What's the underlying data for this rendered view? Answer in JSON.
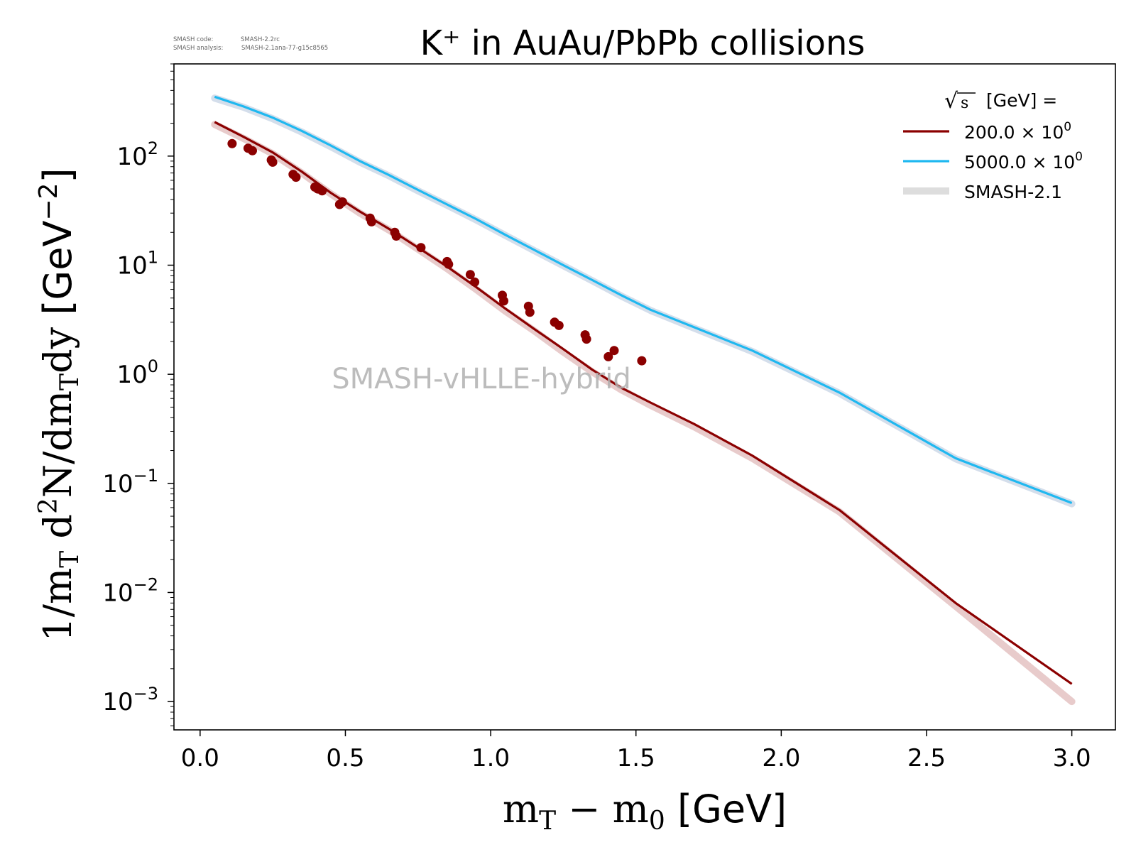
{
  "header": {
    "code_label": "SMASH code:",
    "code_value": "SMASH-2.2rc",
    "analysis_label": "SMASH analysis:",
    "analysis_value": "SMASH-2.1ana-77-g15c8565"
  },
  "watermark": "SMASH-vHLLE-hybrid",
  "chart_data": {
    "type": "line",
    "title": "K⁺ in AuAu/PbPb collisions",
    "xlabel": "m_T − m_0 [GeV]",
    "ylabel": "1/m_T d²N/dm_Tdy [GeV⁻²]",
    "xlim": [
      -0.09,
      3.15
    ],
    "ylim": [
      0.00055,
      700
    ],
    "yscale": "log",
    "grid": false,
    "legend_position": "top-right",
    "x_ticks": [
      "0.0",
      "0.5",
      "1.0",
      "1.5",
      "2.0",
      "2.5",
      "3.0"
    ],
    "y_ticks": [
      "10^2",
      "10^1",
      "10^0",
      "10^-1",
      "10^-2",
      "10^-3"
    ],
    "legend": {
      "title": "√s  [GeV] =",
      "entries": [
        {
          "label": "200.0 × 10⁰",
          "color": "#8b0000"
        },
        {
          "label": "5000.0 × 10⁰",
          "color": "#1fb8f0"
        },
        {
          "label": "SMASH-2.1",
          "color": "#dddddd"
        }
      ]
    },
    "series": [
      {
        "name": "200.0 × 10⁰",
        "color": "#8b0000",
        "x": [
          0.05,
          0.15,
          0.25,
          0.35,
          0.45,
          0.55,
          0.65,
          0.75,
          0.85,
          0.95,
          1.05,
          1.15,
          1.25,
          1.35,
          1.45,
          1.55,
          1.7,
          1.9,
          2.2,
          2.6,
          3.0
        ],
        "y": [
          205,
          150,
          108,
          72,
          46,
          31,
          21.5,
          14.5,
          9.7,
          6.3,
          4.0,
          2.6,
          1.7,
          1.1,
          0.75,
          0.55,
          0.35,
          0.18,
          0.057,
          0.008,
          0.00145
        ]
      },
      {
        "name": "5000.0 × 10⁰",
        "color": "#1fb8f0",
        "x": [
          0.05,
          0.15,
          0.25,
          0.35,
          0.45,
          0.55,
          0.65,
          0.75,
          0.85,
          0.95,
          1.05,
          1.15,
          1.25,
          1.35,
          1.45,
          1.55,
          1.7,
          1.9,
          2.2,
          2.6,
          3.0
        ],
        "y": [
          350,
          285,
          225,
          170,
          125,
          90,
          67,
          49,
          36,
          26.5,
          19,
          13.8,
          10,
          7.3,
          5.3,
          3.9,
          2.7,
          1.65,
          0.68,
          0.17,
          0.066
        ]
      }
    ],
    "bands": [
      {
        "name": "SMASH-2.1",
        "color": "#dddddd",
        "follows": "200.0 × 10⁰",
        "x": [
          0.05,
          0.15,
          0.25,
          0.35,
          0.45,
          0.55,
          0.65,
          0.75,
          0.85,
          0.95,
          1.05,
          1.15,
          1.25,
          1.35,
          1.45,
          1.55,
          1.7,
          1.9,
          2.2,
          2.6,
          3.0
        ],
        "y": [
          195,
          145,
          105,
          70,
          45,
          30,
          21,
          14,
          9.3,
          6.0,
          3.8,
          2.5,
          1.6,
          1.05,
          0.72,
          0.52,
          0.33,
          0.17,
          0.055,
          0.0075,
          0.001
        ]
      },
      {
        "name": "SMASH-2.1",
        "color": "#dddddd",
        "follows": "5000.0 × 10⁰",
        "x": [
          0.05,
          0.15,
          0.25,
          0.35,
          0.45,
          0.55,
          0.65,
          0.75,
          0.85,
          0.95,
          1.05,
          1.15,
          1.25,
          1.35,
          1.45,
          1.55,
          1.7,
          1.9,
          2.2,
          2.6,
          3.0
        ],
        "y": [
          340,
          280,
          220,
          166,
          122,
          88,
          66,
          48,
          35.5,
          26,
          18.8,
          13.6,
          9.9,
          7.2,
          5.2,
          3.85,
          2.65,
          1.62,
          0.67,
          0.168,
          0.065
        ]
      }
    ],
    "scatter": {
      "name": "200.0 × 10⁰",
      "color": "#8b0000",
      "points": [
        [
          0.11,
          130
        ],
        [
          0.165,
          118
        ],
        [
          0.18,
          112
        ],
        [
          0.245,
          92
        ],
        [
          0.25,
          88
        ],
        [
          0.32,
          68
        ],
        [
          0.33,
          64
        ],
        [
          0.395,
          52
        ],
        [
          0.405,
          50
        ],
        [
          0.42,
          48
        ],
        [
          0.48,
          36
        ],
        [
          0.49,
          38
        ],
        [
          0.585,
          27
        ],
        [
          0.59,
          25
        ],
        [
          0.67,
          20
        ],
        [
          0.675,
          18.5
        ],
        [
          0.76,
          14.5
        ],
        [
          0.85,
          10.8
        ],
        [
          0.855,
          10.2
        ],
        [
          0.93,
          8.2
        ],
        [
          0.945,
          7.0
        ],
        [
          1.04,
          5.3
        ],
        [
          1.045,
          4.7
        ],
        [
          1.13,
          4.2
        ],
        [
          1.135,
          3.7
        ],
        [
          1.22,
          3.0
        ],
        [
          1.235,
          2.8
        ],
        [
          1.325,
          2.3
        ],
        [
          1.33,
          2.1
        ],
        [
          1.405,
          1.45
        ],
        [
          1.425,
          1.65
        ],
        [
          1.52,
          1.33
        ]
      ]
    }
  }
}
